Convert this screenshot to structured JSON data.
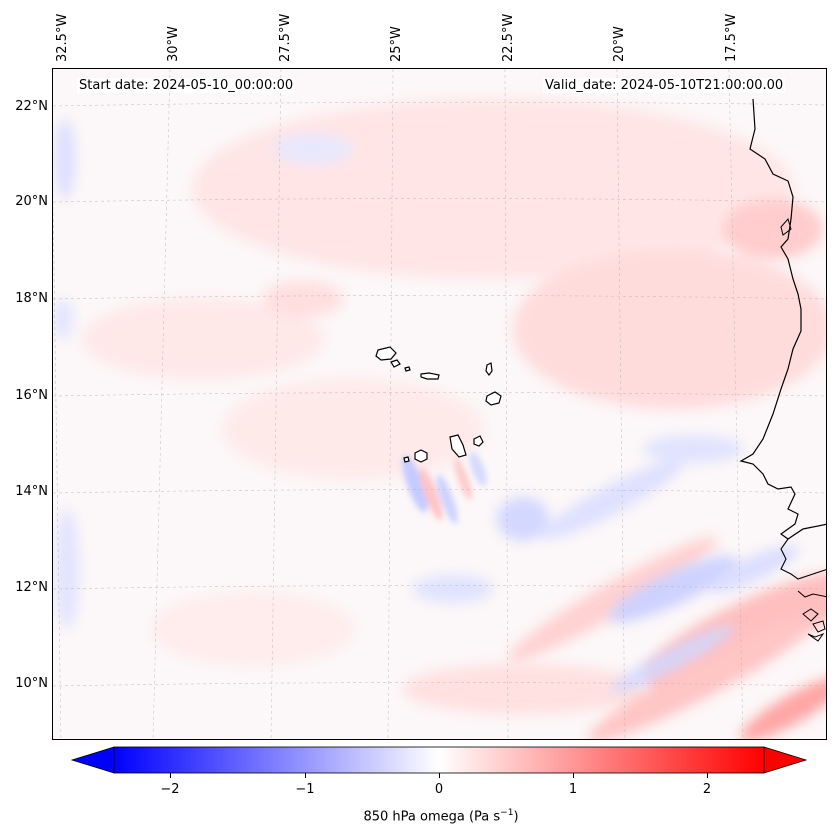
{
  "map": {
    "longitude_labels": [
      "32.5°W",
      "30°W",
      "27.5°W",
      "25°W",
      "22.5°W",
      "20°W",
      "17.5°W"
    ],
    "latitude_labels": [
      "22°N",
      "20°N",
      "18°N",
      "16°N",
      "14°N",
      "12°N",
      "10°N"
    ],
    "start_date": "Start date: 2024-05-10_00:00:00",
    "valid_date": "Valid_date: 2024-05-10T21:00:00.00",
    "field_colors": {
      "negative": "#0000ff",
      "zero": "#ffffff",
      "positive": "#ff0000",
      "coastline": "#000000",
      "gridlines": "#b0b0b0"
    }
  },
  "colorbar": {
    "label": "850 hPa omega (Pa s",
    "label_superscript": "−1",
    "label_suffix": ")",
    "ticks": [
      "−2",
      "−1",
      "0",
      "1",
      "2"
    ],
    "range": [
      -2.6,
      2.6
    ],
    "extend": "both"
  }
}
